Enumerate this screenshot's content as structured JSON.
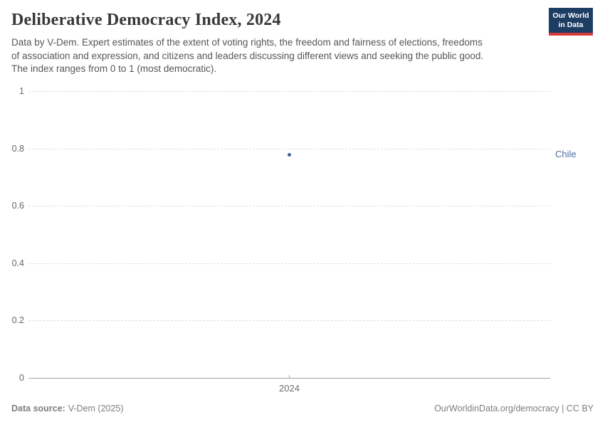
{
  "header": {
    "title": "Deliberative Democracy Index, 2024",
    "subtitle_lines": [
      "Data by V-Dem. Expert estimates of the extent of voting rights, the freedom and fairness of elections, freedoms",
      "of association and expression, and citizens and leaders discussing different views and seeking the public good.",
      "The index ranges from 0 to 1 (most democratic)."
    ],
    "logo": {
      "line1": "Our World",
      "line2": "in Data",
      "bg_color": "#1d3d63",
      "stripe_color": "#d93a3a"
    }
  },
  "chart_data": {
    "type": "scatter",
    "title": "Deliberative Democracy Index, 2024",
    "x": [
      2024
    ],
    "series": [
      {
        "name": "Chile",
        "values": [
          0.78
        ]
      }
    ],
    "xlabel": "",
    "ylabel": "",
    "ylim": [
      0,
      1
    ],
    "yticks": [
      0,
      0.2,
      0.4,
      0.6,
      0.8,
      1
    ],
    "ytick_labels": [
      "0",
      "0.2",
      "0.4",
      "0.6",
      "0.8",
      "1"
    ],
    "xtick_labels": [
      "2024"
    ],
    "grid": "horizontal-dashed",
    "legend_position": "right-of-point",
    "point_color": "#44619c",
    "entity_label_color": "#4c6fa5"
  },
  "footer": {
    "source_label": "Data source:",
    "source_value": "V-Dem (2025)",
    "credit": "OurWorldinData.org/democracy | CC BY"
  }
}
